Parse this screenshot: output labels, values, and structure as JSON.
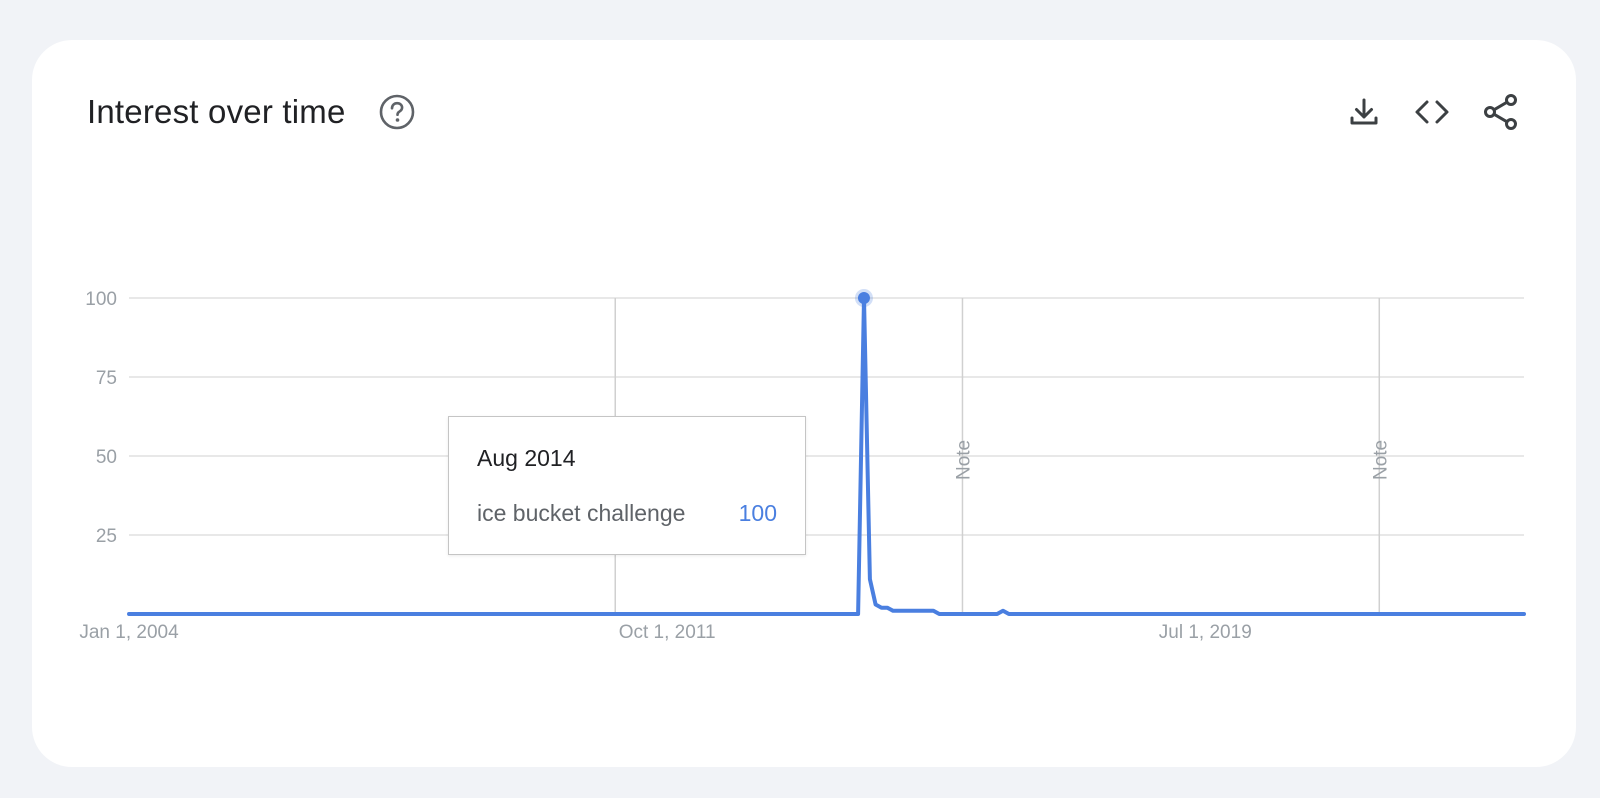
{
  "header": {
    "title": "Interest over time",
    "help_icon": "help-circle-icon"
  },
  "toolbar": {
    "download_icon": "download-icon",
    "embed_icon": "code-icon",
    "share_icon": "share-icon"
  },
  "colors": {
    "series": "#4a7fe0",
    "grid": "#e0e0e0",
    "axis_text": "#9aa0a6",
    "background": "#f1f3f7",
    "card": "#ffffff"
  },
  "tooltip": {
    "date": "Aug 2014",
    "term": "ice bucket challenge",
    "value": "100"
  },
  "chart_data": {
    "type": "line",
    "title": "",
    "xlabel": "",
    "ylabel": "",
    "ylim": [
      0,
      100
    ],
    "xlim": [
      "2004-01-01",
      "2024-02-01"
    ],
    "y_ticks": [
      25,
      50,
      75,
      100
    ],
    "x_tick_labels": [
      {
        "label": "Jan 1, 2004",
        "date": "2004-01-01"
      },
      {
        "label": "Oct 1, 2011",
        "date": "2011-10-01"
      },
      {
        "label": "Jul 1, 2019",
        "date": "2019-07-01"
      }
    ],
    "notes": [
      {
        "label": "Note",
        "date": "2011-01-01"
      },
      {
        "label": "Note",
        "date": "2016-01-01"
      },
      {
        "label": "Note",
        "date": "2022-01-01"
      }
    ],
    "grid": true,
    "legend": "none",
    "series": [
      {
        "name": "ice bucket challenge",
        "points": [
          [
            "2004-01-01",
            0
          ],
          [
            "2014-07-01",
            0
          ],
          [
            "2014-08-01",
            100
          ],
          [
            "2014-09-01",
            11
          ],
          [
            "2014-10-01",
            3
          ],
          [
            "2014-11-01",
            2
          ],
          [
            "2014-12-01",
            2
          ],
          [
            "2015-01-01",
            1
          ],
          [
            "2015-06-01",
            1
          ],
          [
            "2015-07-01",
            1
          ],
          [
            "2015-08-01",
            1
          ],
          [
            "2015-09-01",
            0
          ],
          [
            "2016-07-01",
            0
          ],
          [
            "2016-08-01",
            1
          ],
          [
            "2016-09-01",
            0
          ],
          [
            "2024-02-01",
            0
          ]
        ]
      }
    ],
    "highlight": {
      "date": "2014-08-01",
      "value": 100
    }
  }
}
